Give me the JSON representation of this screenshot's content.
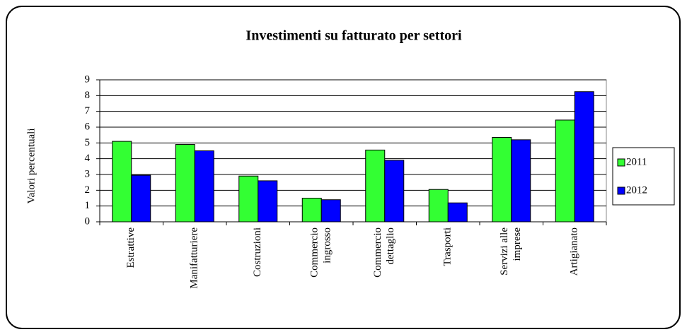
{
  "chart_data": {
    "type": "bar",
    "title": "Investimenti su fatturato per settori",
    "y_label": "Valori percentuali",
    "categories": [
      [
        "Estrattive"
      ],
      [
        "Manifatturiere"
      ],
      [
        "Costruzioni"
      ],
      [
        "Commercio",
        "ingrosso"
      ],
      [
        "Commercio",
        "dettaglio"
      ],
      [
        "Trasporti"
      ],
      [
        "Servizi alle",
        "imprese"
      ],
      [
        "Artigianato"
      ]
    ],
    "series": [
      {
        "name": "2011",
        "color": "#33ff33",
        "values": [
          5.1,
          4.9,
          2.9,
          1.5,
          4.55,
          2.05,
          5.35,
          6.45
        ]
      },
      {
        "name": "2012",
        "color": "#0000ff",
        "values": [
          2.95,
          4.5,
          2.6,
          1.4,
          3.9,
          1.2,
          5.2,
          8.25
        ]
      }
    ],
    "ylim": [
      0,
      9
    ],
    "yticks": [
      0,
      1,
      2,
      3,
      4,
      5,
      6,
      7,
      8,
      9
    ],
    "grid": true,
    "legend": "right"
  }
}
